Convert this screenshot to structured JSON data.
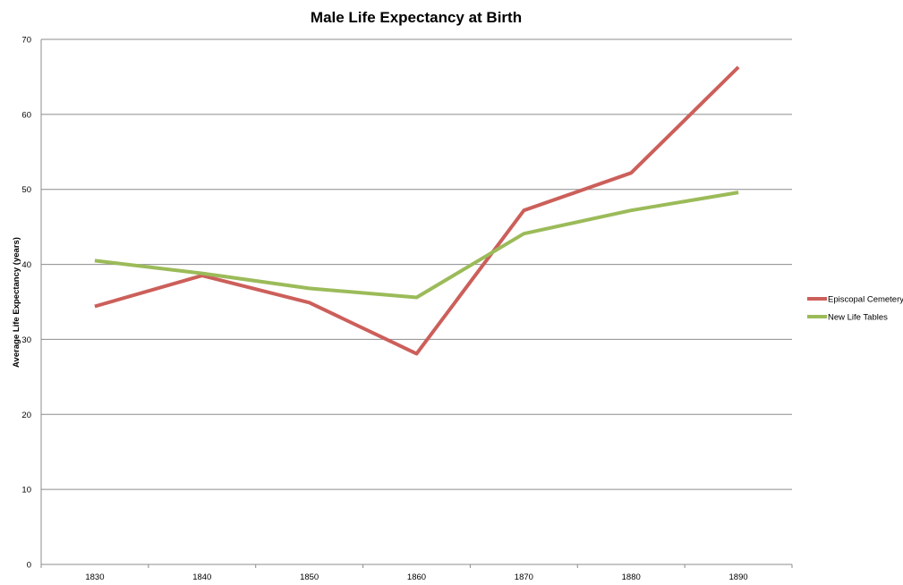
{
  "chart_data": {
    "type": "line",
    "title": "Male Life Expectancy at Birth",
    "xlabel": "",
    "ylabel": "Average Life Expectancy (years)",
    "categories": [
      "1830",
      "1840",
      "1850",
      "1860",
      "1870",
      "1880",
      "1890"
    ],
    "ylim": [
      0,
      70
    ],
    "yticks": [
      "0",
      "10",
      "20",
      "30",
      "40",
      "50",
      "60",
      "70"
    ],
    "grid": true,
    "legend_position": "right",
    "series": [
      {
        "name": "Episcopal Cemetery",
        "color": "#cc5f5a",
        "values": [
          34.4,
          38.5,
          34.9,
          28.1,
          47.2,
          52.2,
          66.3
        ]
      },
      {
        "name": "New Life Tables",
        "color": "#9bbb59",
        "values": [
          40.5,
          38.8,
          36.8,
          35.6,
          44.1,
          47.2,
          49.6
        ]
      }
    ]
  }
}
